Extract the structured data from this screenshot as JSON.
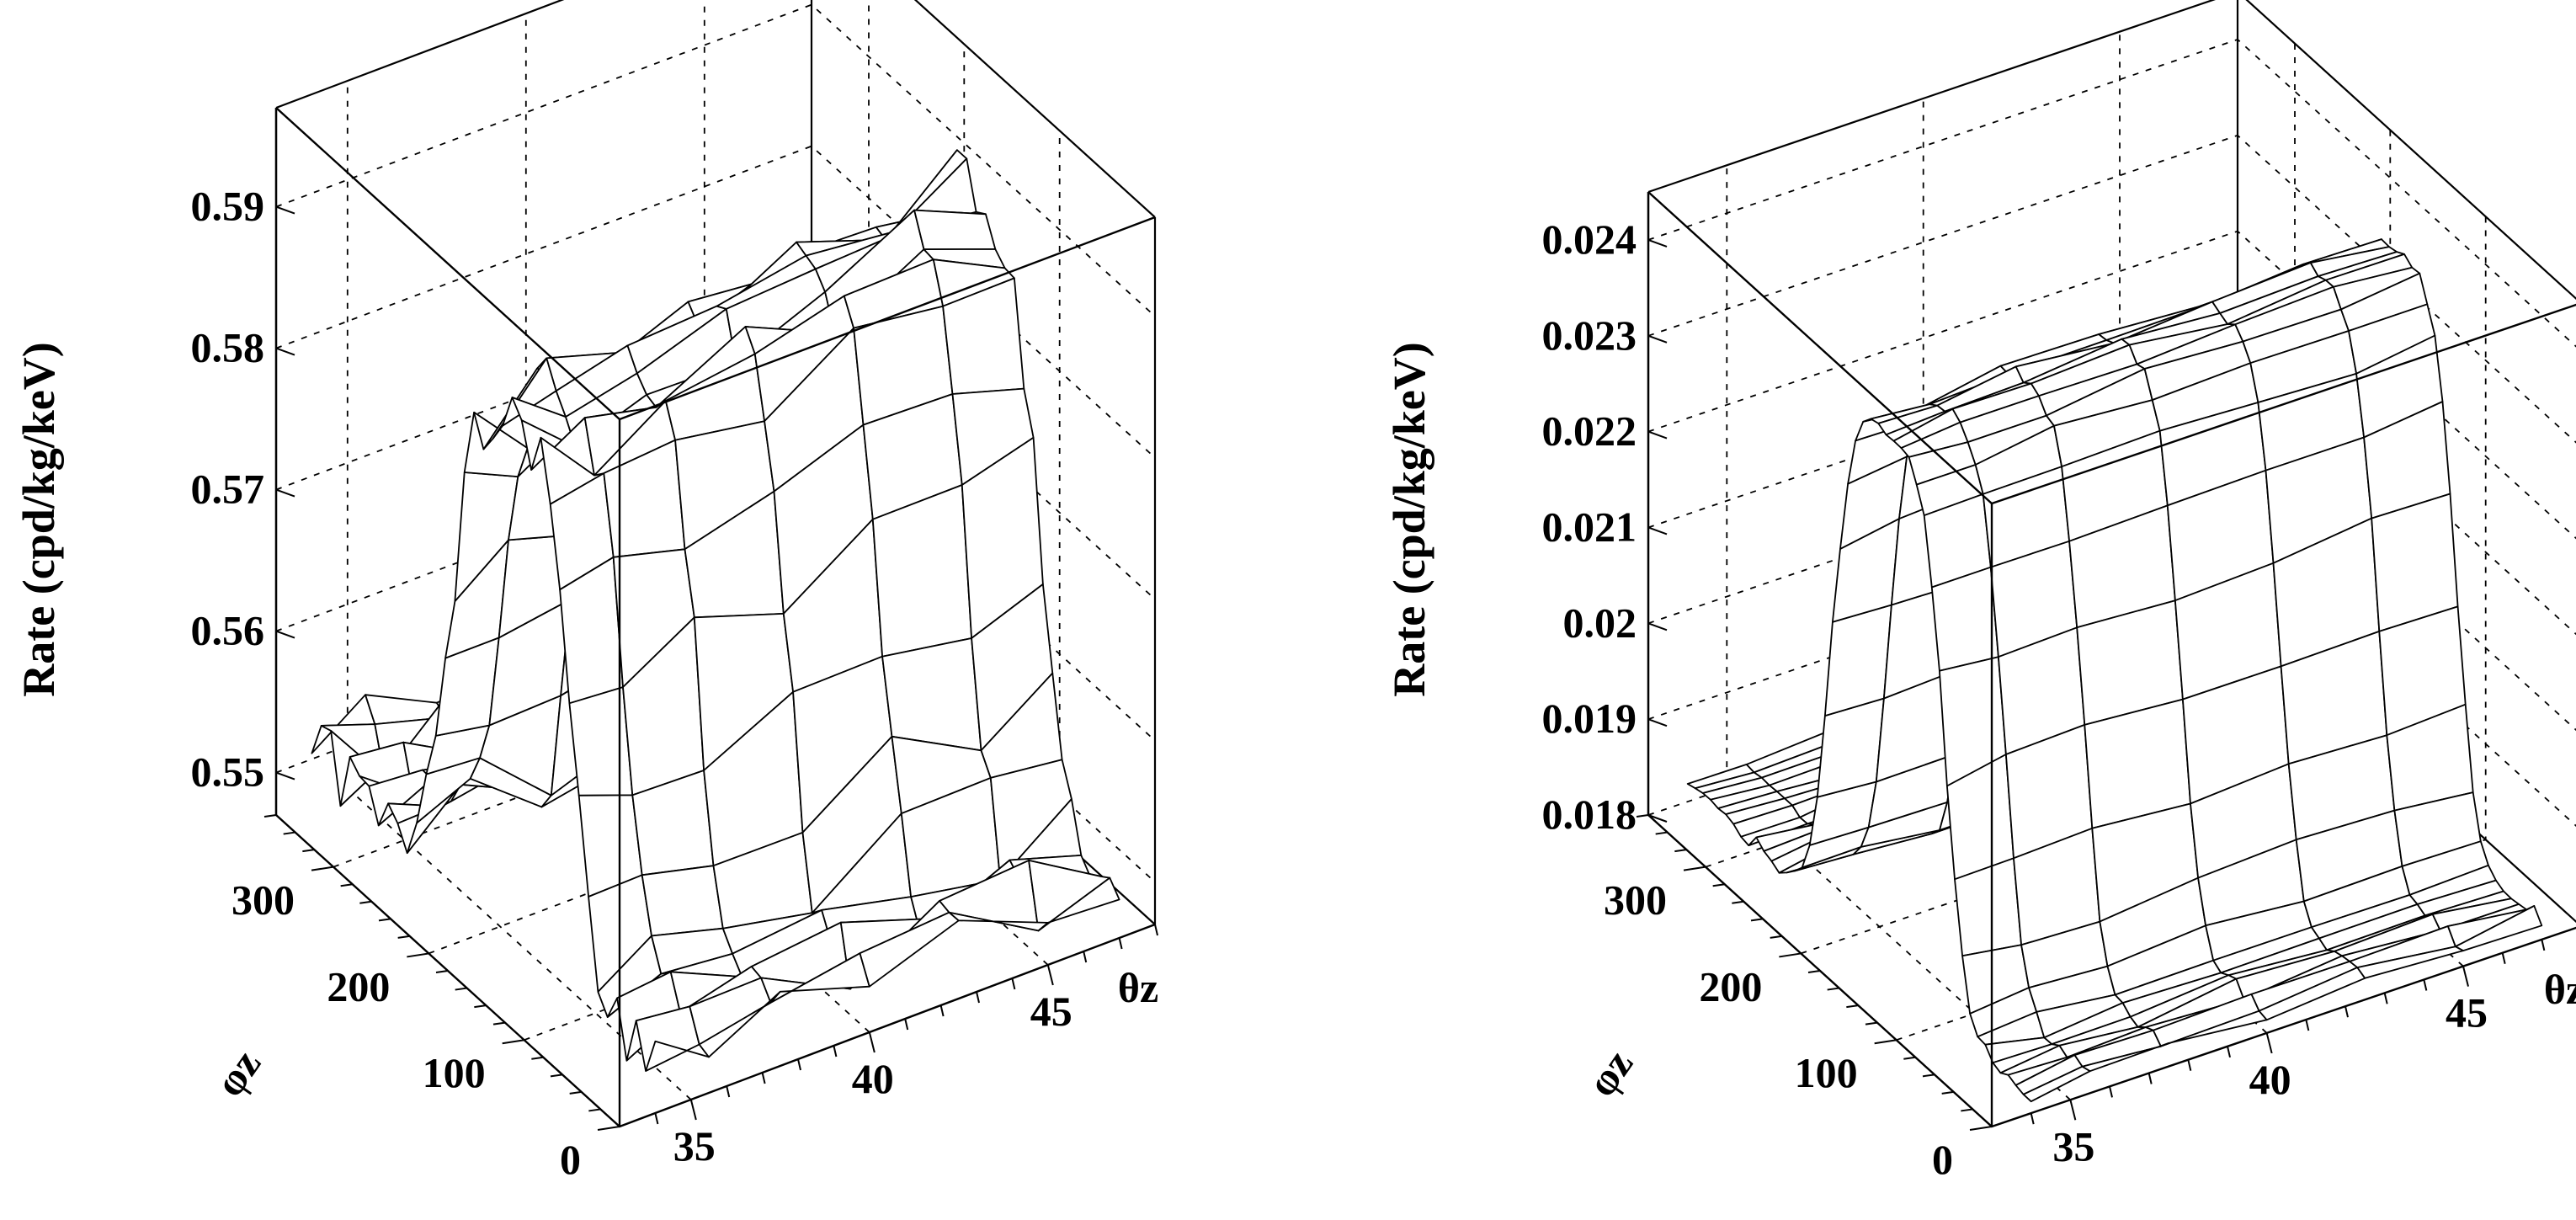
{
  "chart_data": [
    {
      "type": "surface",
      "ylabel": "Rate (cpd/kg/keV)",
      "x_title": "θz",
      "y_title": "φz",
      "x_ticks": [
        "35",
        "40",
        "45"
      ],
      "y_ticks": [
        "0",
        "100",
        "200",
        "300"
      ],
      "z_ticks": [
        "0.55",
        "0.56",
        "0.57",
        "0.58",
        "0.59"
      ],
      "xlim": [
        33,
        48
      ],
      "ylim": [
        0,
        360
      ],
      "zlim": [
        0.547,
        0.597
      ],
      "z_baseline": 0.551,
      "z_peak": 0.588,
      "phi_peak_center": 150,
      "phi_peak_width": 60,
      "theta_slope": 0.009,
      "noise": 0.0025,
      "theta_lines": [
        34,
        35.5,
        37.5,
        40,
        42.5,
        45,
        47
      ],
      "phi_step": 10,
      "grid": true
    },
    {
      "type": "surface",
      "ylabel": "Rate (cpd/kg/keV)",
      "x_title": "θz",
      "y_title": "φz",
      "x_ticks": [
        "35",
        "40",
        "45"
      ],
      "y_ticks": [
        "0",
        "100",
        "200",
        "300"
      ],
      "z_ticks": [
        "0.018",
        "0.019",
        "0.02",
        "0.021",
        "0.022",
        "0.023",
        "0.024"
      ],
      "xlim": [
        33,
        48
      ],
      "ylim": [
        0,
        360
      ],
      "zlim": [
        0.018,
        0.0245
      ],
      "z_baseline": 0.0182,
      "z_peak": 0.0238,
      "phi_peak_center": 150,
      "phi_peak_width": 55,
      "theta_slope": 0.0012,
      "noise": 8e-05,
      "theta_lines": [
        34,
        35.5,
        37.5,
        40,
        42.5,
        45,
        47
      ],
      "phi_step": 8,
      "grid": true
    }
  ]
}
